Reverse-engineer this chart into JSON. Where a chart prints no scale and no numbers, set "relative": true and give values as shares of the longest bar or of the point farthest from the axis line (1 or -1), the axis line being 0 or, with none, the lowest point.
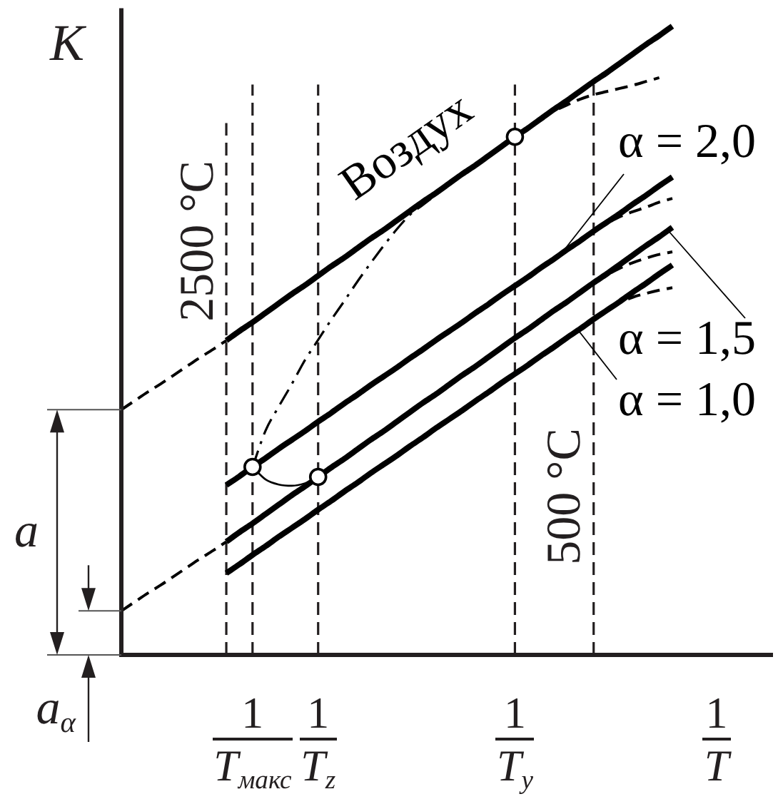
{
  "chart_data": {
    "type": "line",
    "relative": true,
    "xlabel": "1\nT",
    "ylabel": "K",
    "grid": "x",
    "legend": "right",
    "categories": [
      null,
      null,
      null,
      null,
      null,
      null,
      null,
      null,
      null,
      null,
      "1\nT$_{макс}$",
      null,
      null,
      null,
      null,
      "1\nT$_{z}$",
      null,
      null,
      null,
      null,
      null,
      null,
      null,
      null,
      null,
      null,
      null,
      null,
      null,
      null,
      "1\nT$_{y}$",
      null,
      null,
      null,
      null,
      null,
      null,
      null,
      null,
      null,
      null,
      null,
      null
    ],
    "series": [
      {
        "name": "Воздух",
        "color": "#000000",
        "values": [
          null,
          null,
          null,
          null,
          null,
          null,
          null,
          null,
          0.5,
          0.515,
          0.529,
          0.544,
          0.559,
          0.574,
          0.588,
          0.603,
          0.618,
          0.632,
          0.647,
          0.662,
          0.676,
          0.691,
          0.706,
          0.721,
          0.735,
          0.75,
          0.765,
          0.779,
          0.794,
          0.809,
          0.824,
          0.838,
          0.853,
          0.868,
          0.882,
          0.897,
          0.912,
          0.926,
          0.941,
          0.956,
          0.971,
          0.985,
          1
        ]
      },
      {
        "color": "#000000",
        "line_style": "dashed",
        "values": [
          0.39,
          0.404,
          0.418,
          0.431,
          0.445,
          0.459,
          0.473,
          0.486,
          0.5,
          null,
          null,
          null,
          null,
          null,
          null,
          null,
          null,
          null,
          null,
          null,
          null,
          null,
          null,
          null,
          null,
          null,
          null,
          null,
          null,
          null,
          null,
          null,
          null,
          null,
          null,
          null,
          null,
          null,
          null,
          null,
          null,
          null,
          null
        ]
      },
      {
        "name": "α = 2,0",
        "color": "#000000",
        "values": [
          null,
          null,
          null,
          null,
          null,
          null,
          null,
          null,
          0.27,
          0.284,
          0.299,
          0.313,
          0.328,
          0.342,
          0.356,
          0.371,
          0.385,
          0.4,
          0.414,
          0.429,
          0.443,
          0.457,
          0.472,
          0.486,
          0.501,
          0.515,
          0.529,
          0.544,
          0.558,
          0.573,
          0.587,
          0.601,
          0.616,
          0.63,
          0.645,
          0.659,
          0.674,
          0.688,
          0.702,
          0.717,
          0.731,
          0.746,
          0.76
        ]
      },
      {
        "name": "α = 1,5",
        "color": "#000000",
        "values": [
          null,
          null,
          null,
          null,
          null,
          null,
          null,
          null,
          0.18,
          0.195,
          0.209,
          0.224,
          0.239,
          0.254,
          0.268,
          0.283,
          0.298,
          0.312,
          0.327,
          0.342,
          0.356,
          0.371,
          0.386,
          0.401,
          0.415,
          0.43,
          0.445,
          0.459,
          0.474,
          0.489,
          0.504,
          0.518,
          0.533,
          0.548,
          0.562,
          0.577,
          0.592,
          0.606,
          0.621,
          0.636,
          0.651,
          0.665,
          0.68
        ]
      },
      {
        "name": "α = 1,0",
        "color": "#000000",
        "values": [
          null,
          null,
          null,
          null,
          null,
          null,
          null,
          null,
          0.13,
          0.144,
          0.159,
          0.173,
          0.188,
          0.202,
          0.216,
          0.231,
          0.245,
          0.26,
          0.274,
          0.289,
          0.303,
          0.317,
          0.332,
          0.346,
          0.361,
          0.375,
          0.389,
          0.404,
          0.418,
          0.433,
          0.447,
          0.461,
          0.476,
          0.49,
          0.505,
          0.519,
          0.534,
          0.548,
          0.562,
          0.577,
          0.591,
          0.606,
          0.62
        ]
      },
      {
        "color": "#000000",
        "line_style": "dashed",
        "values": [
          0.07,
          0.084,
          0.098,
          0.111,
          0.125,
          0.139,
          0.153,
          0.166,
          0.18,
          null,
          null,
          null,
          null,
          null,
          null,
          null,
          null,
          null,
          null,
          null,
          null,
          null,
          null,
          null,
          null,
          null,
          null,
          null,
          null,
          null,
          null,
          null,
          null,
          null,
          null,
          null,
          null,
          null,
          null,
          null,
          null,
          null,
          null
        ]
      },
      {
        "color": "#000000",
        "line_style": "dashed",
        "values": [
          null,
          null,
          null,
          null,
          null,
          null,
          null,
          null,
          null,
          null,
          null,
          null,
          null,
          null,
          null,
          null,
          null,
          null,
          null,
          null,
          null,
          null,
          null,
          null,
          null,
          null,
          null,
          null,
          null,
          null,
          null,
          null,
          0.853,
          0.865,
          0.875,
          0.884,
          0.891,
          0.896,
          0.901,
          0.906,
          0.912,
          0.918,
          null
        ]
      },
      {
        "color": "#000000",
        "line_style": "dashed",
        "values": [
          null,
          null,
          null,
          null,
          null,
          null,
          null,
          null,
          null,
          null,
          null,
          null,
          null,
          null,
          null,
          null,
          null,
          null,
          null,
          null,
          null,
          null,
          null,
          null,
          null,
          null,
          null,
          null,
          null,
          null,
          null,
          null,
          null,
          null,
          null,
          null,
          0.674,
          0.686,
          0.697,
          0.705,
          0.712,
          0.72,
          0.726
        ]
      },
      {
        "color": "#000000",
        "line_style": "dashed",
        "values": [
          null,
          null,
          null,
          null,
          null,
          null,
          null,
          null,
          null,
          null,
          null,
          null,
          null,
          null,
          null,
          null,
          null,
          null,
          null,
          null,
          null,
          null,
          null,
          null,
          null,
          null,
          null,
          null,
          null,
          null,
          null,
          null,
          null,
          null,
          null,
          null,
          0.592,
          0.604,
          0.615,
          0.624,
          0.631,
          0.637,
          0.641
        ]
      },
      {
        "color": "#000000",
        "line_style": "dashed",
        "values": [
          null,
          null,
          null,
          null,
          null,
          null,
          null,
          null,
          null,
          null,
          null,
          null,
          null,
          null,
          null,
          null,
          null,
          null,
          null,
          null,
          null,
          null,
          null,
          null,
          null,
          null,
          null,
          null,
          null,
          null,
          null,
          null,
          null,
          null,
          null,
          null,
          0.534,
          0.547,
          0.56,
          0.569,
          0.575,
          0.58,
          0.584
        ]
      },
      {
        "color": "#000000",
        "line_style": "dashdot",
        "values": [
          null,
          null,
          null,
          null,
          null,
          null,
          null,
          null,
          null,
          null,
          0.299,
          0.357,
          0.395,
          0.431,
          0.469,
          0.501,
          0.533,
          0.563,
          0.594,
          0.623,
          0.651,
          0.677,
          0.7,
          0.716,
          0.732,
          0.748,
          0.763,
          0.778,
          0.793,
          0.808,
          0.824,
          null,
          null,
          null,
          null,
          null,
          null,
          null,
          null,
          null,
          null,
          null,
          null
        ]
      },
      {
        "color": "#000000",
        "values": [
          null,
          null,
          null,
          null,
          null,
          null,
          null,
          null,
          null,
          null,
          0.299,
          0.279,
          0.271,
          0.269,
          0.273,
          0.283,
          null,
          null,
          null,
          null,
          null,
          null,
          null,
          null,
          null,
          null,
          null,
          null,
          null,
          null,
          null,
          null,
          null,
          null,
          null,
          null,
          null,
          null,
          null,
          null,
          null,
          null,
          null
        ]
      },
      {
        "type": "scatter",
        "marker": "circle",
        "color": "#000000",
        "values": [
          null,
          null,
          null,
          null,
          null,
          null,
          null,
          null,
          null,
          null,
          0.299,
          null,
          null,
          null,
          null,
          0.283,
          null,
          null,
          null,
          null,
          null,
          null,
          null,
          null,
          null,
          null,
          null,
          null,
          null,
          null,
          0.824,
          null,
          null,
          null,
          null,
          null,
          null,
          null,
          null,
          null,
          null,
          null,
          null
        ]
      }
    ],
    "annotations": [
      "a",
      "a$_{α}$",
      "2500 °C",
      "500 °C"
    ]
  }
}
